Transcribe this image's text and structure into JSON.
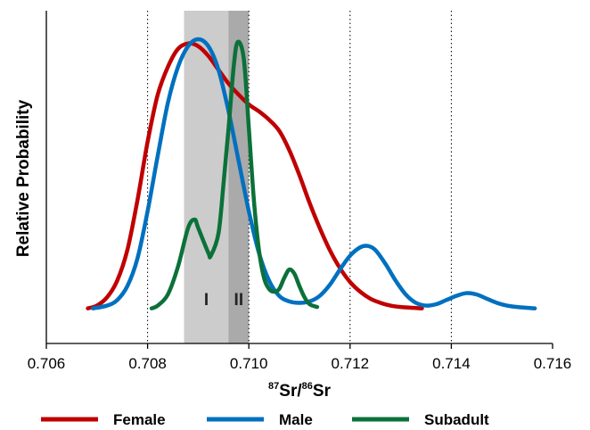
{
  "chart_data": {
    "type": "line",
    "title": "",
    "xlabel_main": "Sr/",
    "xlabel_sup1": "87",
    "xlabel_sup2": "86",
    "xlabel_end": "Sr",
    "ylabel": "Relative Probability",
    "xlim": [
      0.706,
      0.716
    ],
    "ylim": [
      0,
      1.1
    ],
    "x_ticks": [
      "0.706",
      "0.708",
      "0.710",
      "0.712",
      "0.714",
      "0.716"
    ],
    "x_tick_values": [
      0.706,
      0.708,
      0.71,
      0.712,
      0.714,
      0.716
    ],
    "gridlines_x": [
      0.708,
      0.71,
      0.712,
      0.714
    ],
    "grid": "vertical dotted",
    "legend_position": "bottom",
    "regions": [
      {
        "label": "I",
        "x_start": 0.70872,
        "x_end": 0.7096,
        "color": "#cccccc"
      },
      {
        "label": "II",
        "x_start": 0.7096,
        "x_end": 0.71,
        "color": "#aaaaaa"
      }
    ],
    "series": [
      {
        "name": "Female",
        "color": "#c00000",
        "points": [
          [
            0.70682,
            0.03
          ],
          [
            0.707,
            0.04
          ],
          [
            0.7072,
            0.07
          ],
          [
            0.7074,
            0.13
          ],
          [
            0.7076,
            0.24
          ],
          [
            0.7078,
            0.42
          ],
          [
            0.708,
            0.63
          ],
          [
            0.7082,
            0.8
          ],
          [
            0.7084,
            0.9
          ],
          [
            0.7086,
            0.965
          ],
          [
            0.7088,
            0.985
          ],
          [
            0.709,
            0.975
          ],
          [
            0.7092,
            0.94
          ],
          [
            0.7094,
            0.89
          ],
          [
            0.7096,
            0.84
          ],
          [
            0.7098,
            0.8
          ],
          [
            0.71,
            0.765
          ],
          [
            0.7102,
            0.74
          ],
          [
            0.7104,
            0.71
          ],
          [
            0.7106,
            0.67
          ],
          [
            0.7108,
            0.6
          ],
          [
            0.711,
            0.51
          ],
          [
            0.7112,
            0.41
          ],
          [
            0.7114,
            0.32
          ],
          [
            0.7116,
            0.24
          ],
          [
            0.7118,
            0.175
          ],
          [
            0.712,
            0.125
          ],
          [
            0.7122,
            0.09
          ],
          [
            0.7124,
            0.065
          ],
          [
            0.7126,
            0.05
          ],
          [
            0.7128,
            0.04
          ],
          [
            0.713,
            0.035
          ],
          [
            0.71342,
            0.03
          ]
        ]
      },
      {
        "name": "Male",
        "color": "#0070c0",
        "points": [
          [
            0.70692,
            0.03
          ],
          [
            0.7072,
            0.04
          ],
          [
            0.7074,
            0.06
          ],
          [
            0.7076,
            0.11
          ],
          [
            0.7078,
            0.21
          ],
          [
            0.708,
            0.38
          ],
          [
            0.7082,
            0.58
          ],
          [
            0.7084,
            0.77
          ],
          [
            0.7086,
            0.9
          ],
          [
            0.7088,
            0.975
          ],
          [
            0.709,
            1.0
          ],
          [
            0.7092,
            0.975
          ],
          [
            0.7094,
            0.89
          ],
          [
            0.7096,
            0.74
          ],
          [
            0.7098,
            0.56
          ],
          [
            0.71,
            0.38
          ],
          [
            0.7102,
            0.23
          ],
          [
            0.7104,
            0.13
          ],
          [
            0.7106,
            0.075
          ],
          [
            0.7108,
            0.055
          ],
          [
            0.711,
            0.05
          ],
          [
            0.7112,
            0.055
          ],
          [
            0.7114,
            0.075
          ],
          [
            0.7116,
            0.115
          ],
          [
            0.7118,
            0.17
          ],
          [
            0.712,
            0.22
          ],
          [
            0.7122,
            0.25
          ],
          [
            0.71235,
            0.255
          ],
          [
            0.7125,
            0.24
          ],
          [
            0.7127,
            0.19
          ],
          [
            0.7129,
            0.13
          ],
          [
            0.7131,
            0.08
          ],
          [
            0.7133,
            0.05
          ],
          [
            0.7135,
            0.04
          ],
          [
            0.7137,
            0.045
          ],
          [
            0.7139,
            0.06
          ],
          [
            0.7141,
            0.075
          ],
          [
            0.7143,
            0.085
          ],
          [
            0.7145,
            0.08
          ],
          [
            0.7147,
            0.065
          ],
          [
            0.7149,
            0.05
          ],
          [
            0.7151,
            0.04
          ],
          [
            0.7153,
            0.035
          ],
          [
            0.71565,
            0.03
          ]
        ]
      },
      {
        "name": "Subadult",
        "color": "#0b7139",
        "points": [
          [
            0.70808,
            0.03
          ],
          [
            0.7082,
            0.04
          ],
          [
            0.7084,
            0.08
          ],
          [
            0.7086,
            0.18
          ],
          [
            0.7088,
            0.32
          ],
          [
            0.70893,
            0.35
          ],
          [
            0.709,
            0.32
          ],
          [
            0.7092,
            0.23
          ],
          [
            0.70925,
            0.22
          ],
          [
            0.7094,
            0.3
          ],
          [
            0.7095,
            0.48
          ],
          [
            0.7096,
            0.68
          ],
          [
            0.7097,
            0.9
          ],
          [
            0.70978,
            0.99
          ],
          [
            0.7099,
            0.93
          ],
          [
            0.71,
            0.68
          ],
          [
            0.7101,
            0.42
          ],
          [
            0.7102,
            0.24
          ],
          [
            0.7103,
            0.14
          ],
          [
            0.7104,
            0.1
          ],
          [
            0.7105,
            0.09
          ],
          [
            0.7106,
            0.1
          ],
          [
            0.7107,
            0.14
          ],
          [
            0.7108,
            0.17
          ],
          [
            0.7109,
            0.155
          ],
          [
            0.711,
            0.11
          ],
          [
            0.7111,
            0.07
          ],
          [
            0.7112,
            0.045
          ],
          [
            0.71135,
            0.035
          ]
        ]
      }
    ]
  }
}
